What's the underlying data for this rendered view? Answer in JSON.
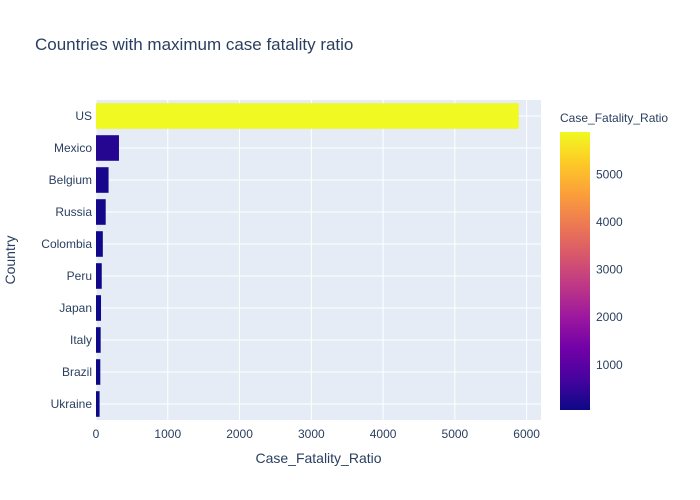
{
  "chart_data": {
    "type": "bar",
    "orientation": "horizontal",
    "title": "Countries with maximum case fatality ratio",
    "xlabel": "Case_Fatality_Ratio",
    "ylabel": "Country",
    "categories": [
      "US",
      "Mexico",
      "Belgium",
      "Russia",
      "Colombia",
      "Peru",
      "Japan",
      "Italy",
      "Brazil",
      "Ukraine"
    ],
    "values": [
      5890,
      320,
      175,
      135,
      95,
      80,
      70,
      65,
      60,
      50
    ],
    "xlim": [
      0,
      6200
    ],
    "x_ticks": [
      0,
      1000,
      2000,
      3000,
      4000,
      5000,
      6000
    ],
    "x_tick_labels": [
      "0",
      "1000",
      "2000",
      "3000",
      "4000",
      "5000",
      "6000"
    ],
    "grid": true,
    "colorbar": {
      "title": "Case_Fatality_Ratio",
      "range": [
        50,
        5890
      ],
      "ticks": [
        1000,
        2000,
        3000,
        4000,
        5000
      ],
      "tick_labels": [
        "1000",
        "2000",
        "3000",
        "4000",
        "5000"
      ],
      "colorscale": [
        "#0d0887",
        "#46039f",
        "#7201a8",
        "#9c179e",
        "#bd3786",
        "#d8576b",
        "#ed7953",
        "#fb9f3a",
        "#fdca26",
        "#f0f921"
      ]
    },
    "colors": {
      "plot_background": "#e5ecf6",
      "grid": "#ffffff",
      "text": "#2a3f5f"
    }
  }
}
